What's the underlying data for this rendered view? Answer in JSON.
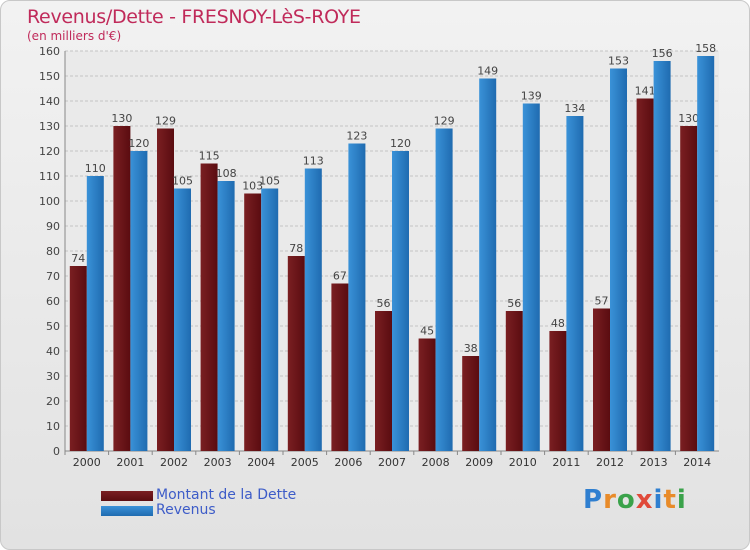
{
  "chart_data": {
    "type": "bar",
    "title": "Revenus/Dette - FRESNOY-LèS-ROYE",
    "subtitle": "(en milliers d'€)",
    "categories": [
      "2000",
      "2001",
      "2002",
      "2003",
      "2004",
      "2005",
      "2006",
      "2007",
      "2008",
      "2009",
      "2010",
      "2011",
      "2012",
      "2013",
      "2014"
    ],
    "series": [
      {
        "name": "Montant de la Dette",
        "color": "#7a1f22",
        "values": [
          74,
          130,
          129,
          115,
          103,
          78,
          67,
          56,
          45,
          38,
          56,
          48,
          57,
          141,
          130
        ]
      },
      {
        "name": "Revenus",
        "color": "#3a92d8",
        "values": [
          110,
          120,
          105,
          108,
          105,
          113,
          123,
          120,
          129,
          149,
          139,
          134,
          153,
          156,
          158
        ]
      }
    ],
    "ylim": [
      0,
      160
    ],
    "yticks": [
      0,
      10,
      20,
      30,
      40,
      50,
      60,
      70,
      80,
      90,
      100,
      110,
      120,
      130,
      140,
      150,
      160
    ],
    "grid": true,
    "legend_position": "bottom-left"
  },
  "logo": {
    "letters": [
      "P",
      "r",
      "o",
      "x",
      "i",
      "t",
      "i"
    ],
    "colors": [
      "#2f7fd0",
      "#e88b2a",
      "#3aa24a",
      "#e04a3a",
      "#2f7fd0",
      "#e88b2a",
      "#3aa24a"
    ]
  }
}
